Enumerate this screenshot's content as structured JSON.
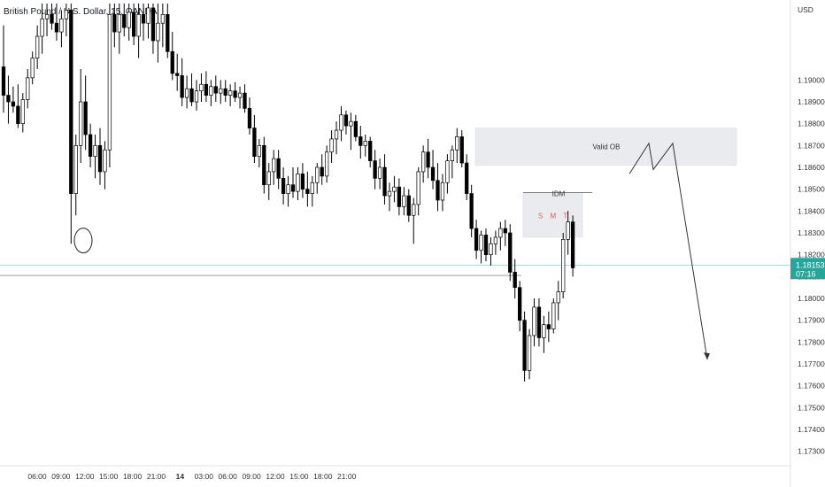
{
  "header": {
    "symbol": "British Pound / U.S. Dollar, 15, OANDA"
  },
  "axis": {
    "currency": "USD"
  },
  "price_tag": {
    "price": "1.18153",
    "countdown": "07:16",
    "color": "#26a69a"
  },
  "chart_data": {
    "type": "candlestick",
    "title": "British Pound / U.S. Dollar, 15, OANDA",
    "ylabel": "USD",
    "ylim": [
      1.1725,
      1.1935
    ],
    "y_ticks": [
      1.19,
      1.189,
      1.188,
      1.187,
      1.186,
      1.185,
      1.184,
      1.183,
      1.182,
      1.181,
      1.18,
      1.179,
      1.178,
      1.177,
      1.176,
      1.175,
      1.174,
      1.173
    ],
    "y_tick_labels": [
      "1.19000",
      "1.18900",
      "1.18800",
      "1.18700",
      "1.18600",
      "1.18500",
      "1.18400",
      "1.18300",
      "1.18200",
      "1.18100",
      "1.18000",
      "1.17900",
      "1.17800",
      "1.17700",
      "1.17600",
      "1.17500",
      "1.17400",
      "1.17300"
    ],
    "x_tick_labels": [
      "06:00",
      "09:00",
      "12:00",
      "15:00",
      "18:00",
      "21:00",
      "14",
      "03:00",
      "06:00",
      "09:00",
      "12:00",
      "15:00",
      "18:00",
      "21:00"
    ],
    "x_tick_bold": [
      false,
      false,
      false,
      false,
      false,
      false,
      true,
      false,
      false,
      false,
      false,
      false,
      false,
      false
    ],
    "candles": [
      {
        "o": 1.1906,
        "h": 1.1925,
        "l": 1.1885,
        "c": 1.1893
      },
      {
        "o": 1.1893,
        "h": 1.1902,
        "l": 1.188,
        "c": 1.189
      },
      {
        "o": 1.189,
        "h": 1.1897,
        "l": 1.1885,
        "c": 1.1888
      },
      {
        "o": 1.1888,
        "h": 1.1898,
        "l": 1.1878,
        "c": 1.188
      },
      {
        "o": 1.188,
        "h": 1.1894,
        "l": 1.1876,
        "c": 1.1891
      },
      {
        "o": 1.1891,
        "h": 1.1905,
        "l": 1.1887,
        "c": 1.1901
      },
      {
        "o": 1.1901,
        "h": 1.1913,
        "l": 1.1898,
        "c": 1.191
      },
      {
        "o": 1.191,
        "h": 1.1925,
        "l": 1.1905,
        "c": 1.192
      },
      {
        "o": 1.192,
        "h": 1.1935,
        "l": 1.1912,
        "c": 1.1928
      },
      {
        "o": 1.1928,
        "h": 1.1935,
        "l": 1.192,
        "c": 1.193
      },
      {
        "o": 1.193,
        "h": 1.1935,
        "l": 1.1923,
        "c": 1.1926
      },
      {
        "o": 1.1926,
        "h": 1.1935,
        "l": 1.1918,
        "c": 1.1922
      },
      {
        "o": 1.1922,
        "h": 1.1932,
        "l": 1.1915,
        "c": 1.1928
      },
      {
        "o": 1.1928,
        "h": 1.1935,
        "l": 1.192,
        "c": 1.1932
      },
      {
        "o": 1.1932,
        "h": 1.1935,
        "l": 1.1825,
        "c": 1.1848
      },
      {
        "o": 1.1848,
        "h": 1.1875,
        "l": 1.1838,
        "c": 1.187
      },
      {
        "o": 1.187,
        "h": 1.1905,
        "l": 1.1862,
        "c": 1.189
      },
      {
        "o": 1.189,
        "h": 1.1902,
        "l": 1.1868,
        "c": 1.1875
      },
      {
        "o": 1.1875,
        "h": 1.188,
        "l": 1.186,
        "c": 1.1865
      },
      {
        "o": 1.1865,
        "h": 1.1875,
        "l": 1.1855,
        "c": 1.187
      },
      {
        "o": 1.187,
        "h": 1.1878,
        "l": 1.1852,
        "c": 1.1858
      },
      {
        "o": 1.1858,
        "h": 1.1872,
        "l": 1.185,
        "c": 1.1868
      },
      {
        "o": 1.1868,
        "h": 1.1935,
        "l": 1.186,
        "c": 1.193
      },
      {
        "o": 1.193,
        "h": 1.1935,
        "l": 1.1915,
        "c": 1.1922
      },
      {
        "o": 1.1922,
        "h": 1.1935,
        "l": 1.1912,
        "c": 1.193
      },
      {
        "o": 1.193,
        "h": 1.1935,
        "l": 1.192,
        "c": 1.1924
      },
      {
        "o": 1.1924,
        "h": 1.1935,
        "l": 1.1918,
        "c": 1.1931
      },
      {
        "o": 1.1931,
        "h": 1.1935,
        "l": 1.1916,
        "c": 1.192
      },
      {
        "o": 1.192,
        "h": 1.1935,
        "l": 1.191,
        "c": 1.193
      },
      {
        "o": 1.193,
        "h": 1.1935,
        "l": 1.1918,
        "c": 1.1926
      },
      {
        "o": 1.1926,
        "h": 1.1935,
        "l": 1.1919,
        "c": 1.1933
      },
      {
        "o": 1.1933,
        "h": 1.1935,
        "l": 1.1912,
        "c": 1.1918
      },
      {
        "o": 1.1918,
        "h": 1.1935,
        "l": 1.1908,
        "c": 1.1926
      },
      {
        "o": 1.1926,
        "h": 1.1935,
        "l": 1.1915,
        "c": 1.193
      },
      {
        "o": 1.193,
        "h": 1.1935,
        "l": 1.191,
        "c": 1.1913
      },
      {
        "o": 1.1913,
        "h": 1.1922,
        "l": 1.19,
        "c": 1.1903
      },
      {
        "o": 1.1903,
        "h": 1.1912,
        "l": 1.1895,
        "c": 1.1902
      },
      {
        "o": 1.1902,
        "h": 1.191,
        "l": 1.1888,
        "c": 1.1892
      },
      {
        "o": 1.1892,
        "h": 1.1902,
        "l": 1.1887,
        "c": 1.1896
      },
      {
        "o": 1.1896,
        "h": 1.1903,
        "l": 1.1888,
        "c": 1.189
      },
      {
        "o": 1.189,
        "h": 1.19,
        "l": 1.1886,
        "c": 1.1895
      },
      {
        "o": 1.1895,
        "h": 1.1903,
        "l": 1.189,
        "c": 1.1898
      },
      {
        "o": 1.1898,
        "h": 1.1904,
        "l": 1.189,
        "c": 1.1893
      },
      {
        "o": 1.1893,
        "h": 1.19,
        "l": 1.1888,
        "c": 1.1897
      },
      {
        "o": 1.1897,
        "h": 1.1902,
        "l": 1.189,
        "c": 1.1894
      },
      {
        "o": 1.1894,
        "h": 1.19,
        "l": 1.1889,
        "c": 1.1896
      },
      {
        "o": 1.1896,
        "h": 1.19,
        "l": 1.189,
        "c": 1.1893
      },
      {
        "o": 1.1893,
        "h": 1.1898,
        "l": 1.1888,
        "c": 1.1895
      },
      {
        "o": 1.1895,
        "h": 1.1899,
        "l": 1.189,
        "c": 1.1892
      },
      {
        "o": 1.1892,
        "h": 1.1897,
        "l": 1.1887,
        "c": 1.1894
      },
      {
        "o": 1.1894,
        "h": 1.1898,
        "l": 1.1885,
        "c": 1.1887
      },
      {
        "o": 1.1887,
        "h": 1.1892,
        "l": 1.1875,
        "c": 1.1878
      },
      {
        "o": 1.1878,
        "h": 1.1884,
        "l": 1.1862,
        "c": 1.1865
      },
      {
        "o": 1.1865,
        "h": 1.1873,
        "l": 1.186,
        "c": 1.187
      },
      {
        "o": 1.187,
        "h": 1.1874,
        "l": 1.1848,
        "c": 1.1852
      },
      {
        "o": 1.1852,
        "h": 1.1862,
        "l": 1.1845,
        "c": 1.1858
      },
      {
        "o": 1.1858,
        "h": 1.1868,
        "l": 1.1852,
        "c": 1.1864
      },
      {
        "o": 1.1864,
        "h": 1.1868,
        "l": 1.185,
        "c": 1.1855
      },
      {
        "o": 1.1855,
        "h": 1.186,
        "l": 1.1843,
        "c": 1.1848
      },
      {
        "o": 1.1848,
        "h": 1.1856,
        "l": 1.1842,
        "c": 1.1852
      },
      {
        "o": 1.1852,
        "h": 1.186,
        "l": 1.1846,
        "c": 1.1849
      },
      {
        "o": 1.1849,
        "h": 1.186,
        "l": 1.1845,
        "c": 1.1857
      },
      {
        "o": 1.1857,
        "h": 1.1862,
        "l": 1.1846,
        "c": 1.185
      },
      {
        "o": 1.185,
        "h": 1.1858,
        "l": 1.1842,
        "c": 1.1848
      },
      {
        "o": 1.1848,
        "h": 1.1856,
        "l": 1.1842,
        "c": 1.1853
      },
      {
        "o": 1.1853,
        "h": 1.1862,
        "l": 1.1848,
        "c": 1.186
      },
      {
        "o": 1.186,
        "h": 1.1866,
        "l": 1.1852,
        "c": 1.1856
      },
      {
        "o": 1.1856,
        "h": 1.187,
        "l": 1.1853,
        "c": 1.1867
      },
      {
        "o": 1.1867,
        "h": 1.1877,
        "l": 1.1862,
        "c": 1.1873
      },
      {
        "o": 1.1873,
        "h": 1.1881,
        "l": 1.1866,
        "c": 1.1877
      },
      {
        "o": 1.1877,
        "h": 1.1888,
        "l": 1.1872,
        "c": 1.1884
      },
      {
        "o": 1.1884,
        "h": 1.1886,
        "l": 1.1875,
        "c": 1.1879
      },
      {
        "o": 1.1879,
        "h": 1.1885,
        "l": 1.1868,
        "c": 1.1881
      },
      {
        "o": 1.1881,
        "h": 1.1884,
        "l": 1.1872,
        "c": 1.1874
      },
      {
        "o": 1.1874,
        "h": 1.1879,
        "l": 1.1864,
        "c": 1.187
      },
      {
        "o": 1.187,
        "h": 1.1875,
        "l": 1.1865,
        "c": 1.1872
      },
      {
        "o": 1.1872,
        "h": 1.1874,
        "l": 1.186,
        "c": 1.1863
      },
      {
        "o": 1.1863,
        "h": 1.1868,
        "l": 1.185,
        "c": 1.1855
      },
      {
        "o": 1.1855,
        "h": 1.1864,
        "l": 1.185,
        "c": 1.186
      },
      {
        "o": 1.186,
        "h": 1.1866,
        "l": 1.1843,
        "c": 1.1847
      },
      {
        "o": 1.1847,
        "h": 1.1853,
        "l": 1.184,
        "c": 1.1849
      },
      {
        "o": 1.1849,
        "h": 1.1856,
        "l": 1.1844,
        "c": 1.1851
      },
      {
        "o": 1.1851,
        "h": 1.1855,
        "l": 1.1838,
        "c": 1.1842
      },
      {
        "o": 1.1842,
        "h": 1.1851,
        "l": 1.1838,
        "c": 1.1847
      },
      {
        "o": 1.1847,
        "h": 1.185,
        "l": 1.1835,
        "c": 1.1838
      },
      {
        "o": 1.1838,
        "h": 1.1846,
        "l": 1.1825,
        "c": 1.1843
      },
      {
        "o": 1.1843,
        "h": 1.186,
        "l": 1.1838,
        "c": 1.1858
      },
      {
        "o": 1.1858,
        "h": 1.187,
        "l": 1.1853,
        "c": 1.1867
      },
      {
        "o": 1.1867,
        "h": 1.1873,
        "l": 1.1855,
        "c": 1.186
      },
      {
        "o": 1.186,
        "h": 1.1868,
        "l": 1.185,
        "c": 1.1854
      },
      {
        "o": 1.1854,
        "h": 1.1862,
        "l": 1.184,
        "c": 1.1845
      },
      {
        "o": 1.1845,
        "h": 1.1857,
        "l": 1.184,
        "c": 1.1853
      },
      {
        "o": 1.1853,
        "h": 1.1866,
        "l": 1.1848,
        "c": 1.1863
      },
      {
        "o": 1.1863,
        "h": 1.187,
        "l": 1.1855,
        "c": 1.1868
      },
      {
        "o": 1.1868,
        "h": 1.1878,
        "l": 1.1862,
        "c": 1.1874
      },
      {
        "o": 1.1874,
        "h": 1.1877,
        "l": 1.186,
        "c": 1.1862
      },
      {
        "o": 1.1862,
        "h": 1.1866,
        "l": 1.1845,
        "c": 1.1848
      },
      {
        "o": 1.1848,
        "h": 1.1852,
        "l": 1.1828,
        "c": 1.1832
      },
      {
        "o": 1.1832,
        "h": 1.1836,
        "l": 1.1818,
        "c": 1.1822
      },
      {
        "o": 1.1822,
        "h": 1.1831,
        "l": 1.1816,
        "c": 1.1829
      },
      {
        "o": 1.1829,
        "h": 1.1832,
        "l": 1.1817,
        "c": 1.182
      },
      {
        "o": 1.182,
        "h": 1.1828,
        "l": 1.1815,
        "c": 1.1825
      },
      {
        "o": 1.1825,
        "h": 1.1831,
        "l": 1.182,
        "c": 1.1828
      },
      {
        "o": 1.1828,
        "h": 1.1835,
        "l": 1.1822,
        "c": 1.1832
      },
      {
        "o": 1.1832,
        "h": 1.1836,
        "l": 1.1824,
        "c": 1.183
      },
      {
        "o": 1.183,
        "h": 1.1834,
        "l": 1.1808,
        "c": 1.1812
      },
      {
        "o": 1.1812,
        "h": 1.1818,
        "l": 1.18,
        "c": 1.1805
      },
      {
        "o": 1.1805,
        "h": 1.1808,
        "l": 1.1785,
        "c": 1.179
      },
      {
        "o": 1.179,
        "h": 1.1794,
        "l": 1.1762,
        "c": 1.1767
      },
      {
        "o": 1.1767,
        "h": 1.1786,
        "l": 1.1763,
        "c": 1.1783
      },
      {
        "o": 1.1783,
        "h": 1.18,
        "l": 1.1778,
        "c": 1.1796
      },
      {
        "o": 1.1796,
        "h": 1.18,
        "l": 1.1778,
        "c": 1.1782
      },
      {
        "o": 1.1782,
        "h": 1.1792,
        "l": 1.1775,
        "c": 1.1788
      },
      {
        "o": 1.1788,
        "h": 1.1794,
        "l": 1.178,
        "c": 1.1786
      },
      {
        "o": 1.1786,
        "h": 1.18,
        "l": 1.1784,
        "c": 1.1798
      },
      {
        "o": 1.1798,
        "h": 1.1808,
        "l": 1.179,
        "c": 1.1803
      },
      {
        "o": 1.1803,
        "h": 1.183,
        "l": 1.18,
        "c": 1.1827
      },
      {
        "o": 1.1827,
        "h": 1.184,
        "l": 1.182,
        "c": 1.1835
      },
      {
        "o": 1.1835,
        "h": 1.1838,
        "l": 1.181,
        "c": 1.1814
      }
    ],
    "colors": {
      "bull": "#ffffff",
      "bear": "#000000",
      "wick": "#000000",
      "last_price_line": "#26a69a"
    },
    "annotations": [
      {
        "type": "zone",
        "label": "Valid OB",
        "y0": 1.1861,
        "y1": 1.1878
      },
      {
        "type": "zone",
        "label": "S M T",
        "y0": 1.1828,
        "y1": 1.1848
      },
      {
        "type": "level",
        "label": "IDM",
        "y": 1.18485
      },
      {
        "type": "level",
        "label": "",
        "y": 1.18105
      },
      {
        "type": "ellipse",
        "label": "",
        "y": 1.18265
      },
      {
        "type": "projection",
        "label": "",
        "path": [
          1.1857,
          1.1871,
          1.1859,
          1.1871,
          1.1772
        ]
      }
    ],
    "last_price": 1.18153
  }
}
